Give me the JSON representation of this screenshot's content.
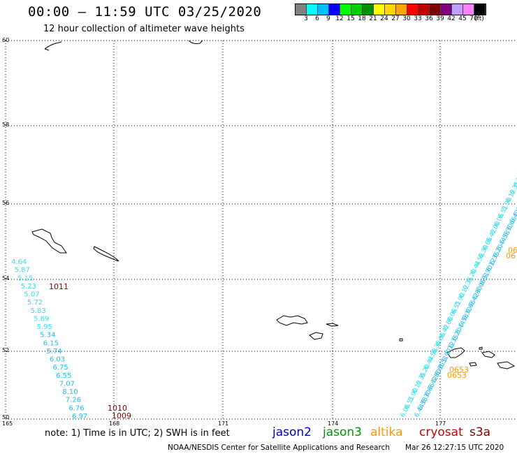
{
  "header": {
    "title": "00:00 – 11:59 UTC 03/25/2020",
    "subtitle": "12 hour collection of altimeter wave heights"
  },
  "colorbar": {
    "colors": [
      "#808080",
      "#00ffff",
      "#00bfff",
      "#0000ff",
      "#00ff00",
      "#00d000",
      "#009000",
      "#ffff00",
      "#ffd700",
      "#ffa500",
      "#ff0000",
      "#c00000",
      "#800000",
      "#800080",
      "#c0a0ff",
      "#ff80ff",
      "#000000"
    ],
    "labels": [
      "3",
      "6",
      "9",
      "12",
      "15",
      "18",
      "21",
      "24",
      "27",
      "30",
      "33",
      "36",
      "39",
      "42",
      "45",
      "70",
      "(ft)"
    ]
  },
  "map": {
    "lat_labels": [
      "60",
      "58",
      "56",
      "54",
      "52",
      "50"
    ],
    "lon_labels": [
      "165",
      "168",
      "171",
      "174",
      "177"
    ],
    "track_left_values": [
      "4.64",
      "5.87",
      "5.15",
      "5.23",
      "5.07",
      "5.72",
      "5.83",
      "5.89",
      "5.95",
      "5.34",
      "6.15",
      "5.74",
      "6.03",
      "6.75",
      "6.55",
      "7.07",
      "8.10",
      "7.26",
      "6.76",
      "6.97"
    ],
    "track_left_times": [
      "1011",
      "1010",
      "1009"
    ],
    "track_right_values": [
      "6.06",
      "6.51",
      "5.90",
      "6.12",
      "6.35",
      "6.20",
      "6.44",
      "6.58",
      "6.30",
      "6.66",
      "6.42",
      "6.80"
    ],
    "altika_times": [
      "0653",
      "0653",
      "06",
      "06"
    ],
    "colors": {
      "track_light": "#33ddee",
      "track_mid": "#22bbee",
      "cryosat": "#800000",
      "altika": "#ff9900"
    }
  },
  "footer": {
    "note": "note:  1) Time is in UTC;  2) SWH is in feet",
    "satellites": [
      {
        "name": "jason2",
        "color": "#0000cc"
      },
      {
        "name": "jason3",
        "color": "#009900"
      },
      {
        "name": "altika",
        "color": "#ff9900"
      },
      {
        "name": "cryosat",
        "color": "#cc0000"
      },
      {
        "name": "s3a",
        "color": "#800000"
      }
    ],
    "credit": "NOAA/NESDIS Center for Satellite Applications and Research",
    "timestamp": "Mar 26 12:27:15 UTC 2020"
  }
}
